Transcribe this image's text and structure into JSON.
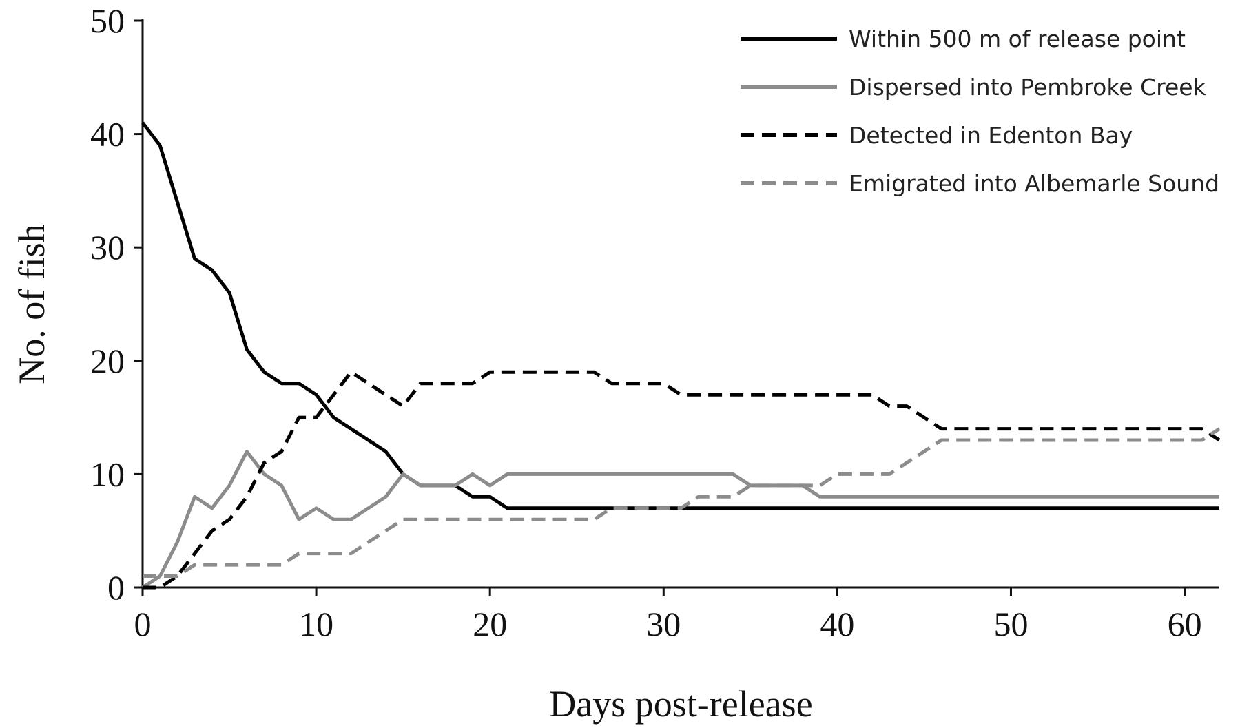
{
  "chart_data": {
    "type": "line",
    "title": "",
    "xlabel": "Days post-release",
    "ylabel": "No. of fish",
    "xlim": [
      0,
      62
    ],
    "ylim": [
      0,
      50
    ],
    "xticks": [
      0,
      10,
      20,
      30,
      40,
      50,
      60
    ],
    "yticks": [
      0,
      10,
      20,
      30,
      40,
      50
    ],
    "grid": false,
    "legend_position": "top-right",
    "x": [
      0,
      1,
      2,
      3,
      4,
      5,
      6,
      7,
      8,
      9,
      10,
      11,
      12,
      13,
      14,
      15,
      16,
      17,
      18,
      19,
      20,
      21,
      22,
      23,
      24,
      25,
      26,
      27,
      28,
      29,
      30,
      31,
      32,
      33,
      34,
      35,
      36,
      37,
      38,
      39,
      40,
      41,
      42,
      43,
      44,
      45,
      46,
      47,
      48,
      49,
      50,
      51,
      52,
      53,
      54,
      55,
      56,
      57,
      58,
      59,
      60,
      61,
      62
    ],
    "series": [
      {
        "name": "Within 500 m of release point",
        "color": "#000000",
        "style": "solid",
        "values": [
          41,
          39,
          34,
          29,
          28,
          26,
          21,
          19,
          18,
          18,
          17,
          15,
          14,
          13,
          12,
          10,
          9,
          9,
          9,
          8,
          8,
          7,
          7,
          7,
          7,
          7,
          7,
          7,
          7,
          7,
          7,
          7,
          7,
          7,
          7,
          7,
          7,
          7,
          7,
          7,
          7,
          7,
          7,
          7,
          7,
          7,
          7,
          7,
          7,
          7,
          7,
          7,
          7,
          7,
          7,
          7,
          7,
          7,
          7,
          7,
          7,
          7,
          7
        ]
      },
      {
        "name": "Dispersed into Pembroke Creek",
        "color": "#8c8c8c",
        "style": "solid",
        "values": [
          0,
          1,
          4,
          8,
          7,
          9,
          12,
          10,
          9,
          6,
          7,
          6,
          6,
          7,
          8,
          10,
          9,
          9,
          9,
          10,
          9,
          10,
          10,
          10,
          10,
          10,
          10,
          10,
          10,
          10,
          10,
          10,
          10,
          10,
          10,
          9,
          9,
          9,
          9,
          8,
          8,
          8,
          8,
          8,
          8,
          8,
          8,
          8,
          8,
          8,
          8,
          8,
          8,
          8,
          8,
          8,
          8,
          8,
          8,
          8,
          8,
          8,
          8
        ]
      },
      {
        "name": "Detected in Edenton Bay",
        "color": "#000000",
        "style": "dashed",
        "values": [
          0,
          0,
          1,
          3,
          5,
          6,
          8,
          11,
          12,
          15,
          15,
          17,
          19,
          18,
          17,
          16,
          18,
          18,
          18,
          18,
          19,
          19,
          19,
          19,
          19,
          19,
          19,
          18,
          18,
          18,
          18,
          17,
          17,
          17,
          17,
          17,
          17,
          17,
          17,
          17,
          17,
          17,
          17,
          16,
          16,
          15,
          14,
          14,
          14,
          14,
          14,
          14,
          14,
          14,
          14,
          14,
          14,
          14,
          14,
          14,
          14,
          14,
          13
        ]
      },
      {
        "name": "Emigrated into Albemarle Sound",
        "color": "#8c8c8c",
        "style": "dashed",
        "values": [
          1,
          1,
          1,
          2,
          2,
          2,
          2,
          2,
          2,
          3,
          3,
          3,
          3,
          4,
          5,
          6,
          6,
          6,
          6,
          6,
          6,
          6,
          6,
          6,
          6,
          6,
          6,
          7,
          7,
          7,
          7,
          7,
          8,
          8,
          8,
          9,
          9,
          9,
          9,
          9,
          10,
          10,
          10,
          10,
          11,
          12,
          13,
          13,
          13,
          13,
          13,
          13,
          13,
          13,
          13,
          13,
          13,
          13,
          13,
          13,
          13,
          13,
          14
        ]
      }
    ]
  }
}
